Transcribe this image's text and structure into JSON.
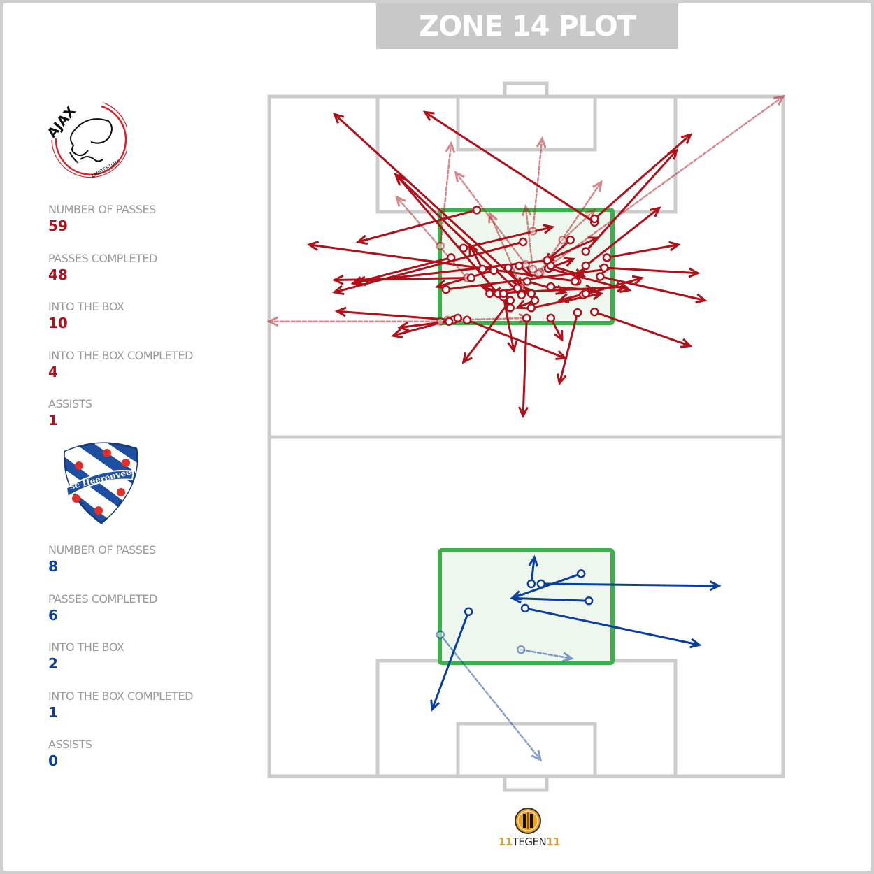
{
  "title": "ZONE 14 PLOT",
  "colors": {
    "home": "#b0101a",
    "away": "#0a3fa0",
    "zone14": "#3cb04b",
    "zone14_fill": "#edf7ed",
    "pitch_lines": "#cccccc",
    "title_bg": "#c8c8c8"
  },
  "legend_encoding": {
    "completed": "solid arrow",
    "incomplete": "dashed faded arrow",
    "start": "open circle"
  },
  "home": {
    "logo_text": "AJAX AMSTERDAM",
    "stats": [
      {
        "label": "NUMBER OF PASSES",
        "value": "59"
      },
      {
        "label": "PASSES COMPLETED",
        "value": "48"
      },
      {
        "label": "INTO THE BOX",
        "value": "10"
      },
      {
        "label": "INTO THE BOX COMPLETED",
        "value": "4"
      },
      {
        "label": "ASSISTS",
        "value": "1"
      }
    ]
  },
  "away": {
    "logo_text": "sc Heerenveen",
    "stats": [
      {
        "label": "NUMBER OF PASSES",
        "value": "8"
      },
      {
        "label": "PASSES COMPLETED",
        "value": "6"
      },
      {
        "label": "INTO THE BOX",
        "value": "2"
      },
      {
        "label": "INTO THE BOX COMPLETED",
        "value": "1"
      },
      {
        "label": "ASSISTS",
        "value": "0"
      }
    ]
  },
  "brand": {
    "logo_text": "11TEGEN11",
    "prefix": "11",
    "middle": "TEGEN",
    "suffix": "11"
  },
  "chart_data": {
    "type": "pass-map",
    "units": "percent of pitch width (x, left to right) and length (y, top to bottom)",
    "home_passes": [
      {
        "from": [
          33.3,
          33.1
        ],
        "to": [
          0,
          33.1
        ],
        "completed": false
      },
      {
        "from": [
          52.7,
          25.9
        ],
        "to": [
          100,
          0
        ],
        "completed": false
      },
      {
        "from": [
          33.3,
          22.0
        ],
        "to": [
          35.4,
          6.9
        ],
        "completed": false
      },
      {
        "from": [
          51.3,
          19.8
        ],
        "to": [
          53.1,
          6.2
        ],
        "completed": false
      },
      {
        "from": [
          49.9,
          24.7
        ],
        "to": [
          36.3,
          11.2
        ],
        "completed": false
      },
      {
        "from": [
          52.4,
          26.1
        ],
        "to": [
          64.6,
          12.6
        ],
        "completed": false
      },
      {
        "from": [
          38.5,
          26.7
        ],
        "to": [
          24.8,
          14.8
        ],
        "completed": false
      },
      {
        "from": [
          51.3,
          25.4
        ],
        "to": [
          49.9,
          16.2
        ],
        "completed": false
      },
      {
        "from": [
          49.0,
          28.0
        ],
        "to": [
          42.9,
          17.2
        ],
        "completed": false
      },
      {
        "from": [
          34.7,
          32.9
        ],
        "to": [
          50.3,
          32.6
        ],
        "completed": false
      },
      {
        "from": [
          57.1,
          21.1
        ],
        "to": [
          63.3,
          16.7
        ],
        "completed": false
      },
      {
        "from": [
          51.0,
          29.0
        ],
        "to": [
          12.7,
          2.6
        ],
        "completed": true
      },
      {
        "from": [
          63.3,
          18.5
        ],
        "to": [
          30.3,
          2.3
        ],
        "completed": true
      },
      {
        "from": [
          63.3,
          18.0
        ],
        "to": [
          82.0,
          5.6
        ],
        "completed": true
      },
      {
        "from": [
          61.6,
          22.8
        ],
        "to": [
          79.3,
          7.9
        ],
        "completed": true
      },
      {
        "from": [
          61.6,
          24.9
        ],
        "to": [
          75.9,
          16.4
        ],
        "completed": true
      },
      {
        "from": [
          40.4,
          16.7
        ],
        "to": [
          17.3,
          21.4
        ],
        "completed": true
      },
      {
        "from": [
          49.4,
          21.4
        ],
        "to": [
          12.7,
          28.8
        ],
        "completed": true
      },
      {
        "from": [
          35.4,
          23.7
        ],
        "to": [
          16.3,
          27.5
        ],
        "completed": true
      },
      {
        "from": [
          37.8,
          22.3
        ],
        "to": [
          55.1,
          19.2
        ],
        "completed": true
      },
      {
        "from": [
          49.1,
          29.2
        ],
        "to": [
          24.6,
          11.5
        ],
        "completed": true
      },
      {
        "from": [
          46.9,
          31.1
        ],
        "to": [
          24.9,
          11.7
        ],
        "completed": true
      },
      {
        "from": [
          59.9,
          27.2
        ],
        "to": [
          7.8,
          21.8
        ],
        "completed": true
      },
      {
        "from": [
          35.8,
          32.9
        ],
        "to": [
          13.2,
          31.6
        ],
        "completed": true
      },
      {
        "from": [
          36.7,
          32.6
        ],
        "to": [
          24.1,
          35.2
        ],
        "completed": true
      },
      {
        "from": [
          35.0,
          33.1
        ],
        "to": [
          25.4,
          34.0
        ],
        "completed": true
      },
      {
        "from": [
          38.5,
          32.9
        ],
        "to": [
          57.6,
          38.5
        ],
        "completed": true
      },
      {
        "from": [
          50.1,
          32.6
        ],
        "to": [
          49.4,
          47.0
        ],
        "completed": true
      },
      {
        "from": [
          54.8,
          32.6
        ],
        "to": [
          57.0,
          35.8
        ],
        "completed": true
      },
      {
        "from": [
          60.0,
          31.8
        ],
        "to": [
          56.5,
          42.2
        ],
        "completed": true
      },
      {
        "from": [
          63.3,
          31.7
        ],
        "to": [
          81.9,
          36.7
        ],
        "completed": true
      },
      {
        "from": [
          46.9,
          30.0
        ],
        "to": [
          37.8,
          39.1
        ],
        "completed": true
      },
      {
        "from": [
          45.6,
          29.5
        ],
        "to": [
          47.6,
          37.4
        ],
        "completed": true
      },
      {
        "from": [
          34.4,
          28.4
        ],
        "to": [
          66.0,
          25.4
        ],
        "completed": true
      },
      {
        "from": [
          65.7,
          23.7
        ],
        "to": [
          79.6,
          21.8
        ],
        "completed": true
      },
      {
        "from": [
          65.2,
          25.2
        ],
        "to": [
          83.4,
          26.0
        ],
        "completed": true
      },
      {
        "from": [
          64.4,
          26.5
        ],
        "to": [
          84.8,
          30.0
        ],
        "completed": true
      },
      {
        "from": [
          61.1,
          29.2
        ],
        "to": [
          72.5,
          26.7
        ],
        "completed": true
      },
      {
        "from": [
          42.9,
          29.0
        ],
        "to": [
          69.4,
          28.0
        ],
        "completed": true
      },
      {
        "from": [
          43.7,
          25.6
        ],
        "to": [
          32.7,
          28.0
        ],
        "completed": true
      },
      {
        "from": [
          41.5,
          25.4
        ],
        "to": [
          39.0,
          21.8
        ],
        "completed": true
      },
      {
        "from": [
          39.3,
          26.7
        ],
        "to": [
          12.7,
          27.0
        ],
        "completed": true
      },
      {
        "from": [
          54.3,
          24.1
        ],
        "to": [
          17.0,
          27.3
        ],
        "completed": true
      },
      {
        "from": [
          54.4,
          25.3
        ],
        "to": [
          70.1,
          28.5
        ],
        "completed": true
      },
      {
        "from": [
          51.0,
          31.1
        ],
        "to": [
          64.6,
          29.0
        ],
        "completed": true
      },
      {
        "from": [
          46.5,
          25.2
        ],
        "to": [
          49.0,
          28.0
        ],
        "completed": true
      },
      {
        "from": [
          48.6,
          24.9
        ],
        "to": [
          51.0,
          26.4
        ],
        "completed": true
      },
      {
        "from": [
          54.8,
          28.0
        ],
        "to": [
          63.3,
          28.5
        ],
        "completed": true
      },
      {
        "from": [
          58.6,
          21.1
        ],
        "to": [
          53.7,
          24.4
        ],
        "completed": true
      },
      {
        "from": [
          59.5,
          27.2
        ],
        "to": [
          61.2,
          25.4
        ],
        "completed": true
      },
      {
        "from": [
          54.3,
          25.3
        ],
        "to": [
          59.2,
          23.9
        ],
        "completed": true
      },
      {
        "from": [
          50.2,
          27.2
        ],
        "to": [
          57.6,
          28.8
        ],
        "completed": true
      },
      {
        "from": [
          51.7,
          30.0
        ],
        "to": [
          48.3,
          31.1
        ],
        "completed": true
      },
      {
        "from": [
          44.5,
          29.0
        ],
        "to": [
          51.0,
          28.5
        ],
        "completed": true
      },
      {
        "from": [
          54.8,
          24.9
        ],
        "to": [
          61.2,
          26.4
        ],
        "completed": true
      },
      {
        "from": [
          48.3,
          28.2
        ],
        "to": [
          43.5,
          29.0
        ],
        "completed": true
      },
      {
        "from": [
          45.6,
          29.0
        ],
        "to": [
          41.5,
          28.0
        ],
        "completed": true
      },
      {
        "from": [
          54.1,
          24.1
        ],
        "to": [
          63.9,
          20.8
        ],
        "completed": true
      },
      {
        "from": [
          61.6,
          29.0
        ],
        "to": [
          56.5,
          30.0
        ],
        "completed": true
      }
    ],
    "away_passes": [
      {
        "from": [
          51.0,
          71.7
        ],
        "to": [
          51.6,
          67.8
        ],
        "completed": true
      },
      {
        "from": [
          52.9,
          71.7
        ],
        "to": [
          87.5,
          72.0
        ],
        "completed": true
      },
      {
        "from": [
          60.7,
          70.2
        ],
        "to": [
          47.3,
          73.8
        ],
        "completed": true
      },
      {
        "from": [
          62.2,
          74.2
        ],
        "to": [
          47.3,
          73.8
        ],
        "completed": true
      },
      {
        "from": [
          49.8,
          75.3
        ],
        "to": [
          83.7,
          80.7
        ],
        "completed": true
      },
      {
        "from": [
          38.8,
          75.8
        ],
        "to": [
          31.7,
          90.2
        ],
        "completed": true
      },
      {
        "from": [
          33.3,
          79.2
        ],
        "to": [
          52.8,
          97.6
        ],
        "completed": false
      },
      {
        "from": [
          49.0,
          81.4
        ],
        "to": [
          58.9,
          82.7
        ],
        "completed": false
      }
    ]
  }
}
